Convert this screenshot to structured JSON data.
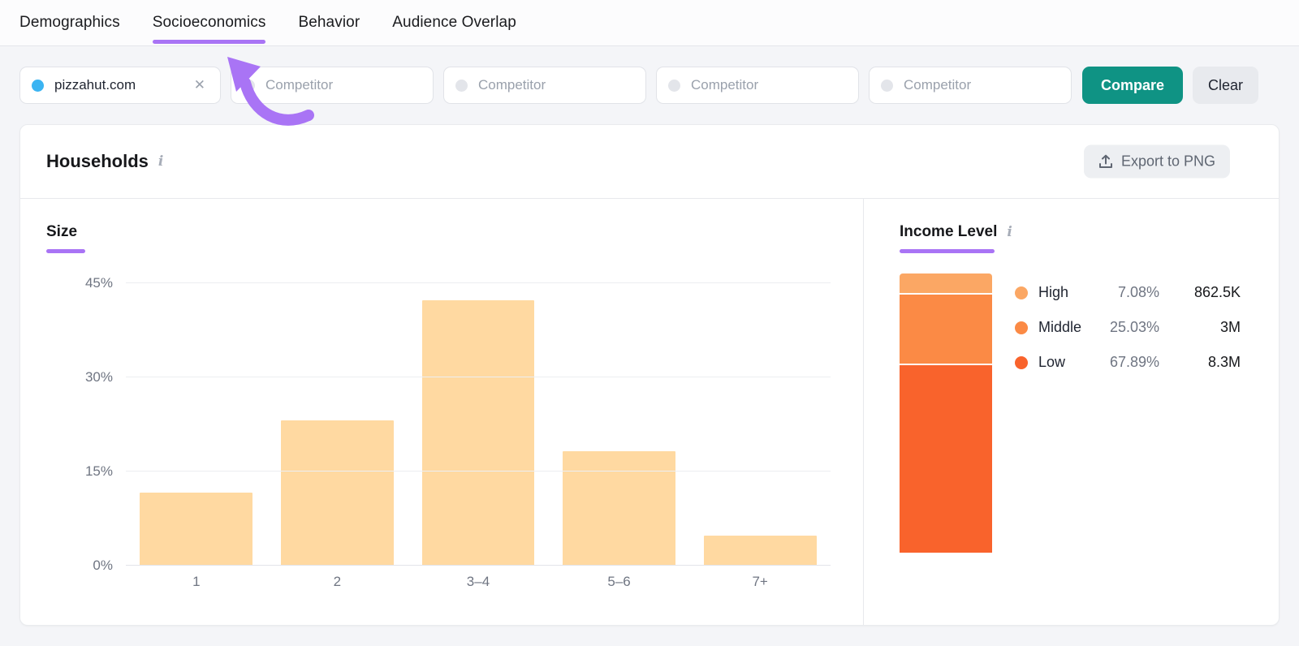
{
  "tabs": [
    {
      "label": "Demographics",
      "active": false
    },
    {
      "label": "Socioeconomics",
      "active": true
    },
    {
      "label": "Behavior",
      "active": false
    },
    {
      "label": "Audience Overlap",
      "active": false
    }
  ],
  "filters": {
    "target_domain": "pizzahut.com",
    "competitor_placeholder": "Competitor",
    "competitor_slots": 4,
    "compare_label": "Compare",
    "clear_label": "Clear"
  },
  "card": {
    "title": "Households",
    "export_label": "Export to PNG"
  },
  "icons": {
    "close": "✕",
    "info": "i"
  },
  "colors": {
    "accent_purple": "#a974f5",
    "compare_green": "#0f9384",
    "target_dot_blue": "#3bb4f2",
    "size_bar": "#ffd9a1"
  },
  "chart_data": [
    {
      "type": "bar",
      "title": "Size",
      "categories": [
        "1",
        "2",
        "3–4",
        "5–6",
        "7+"
      ],
      "values": [
        11.7,
        23.2,
        42.3,
        18.2,
        4.8
      ],
      "value_unit": "percent",
      "yticks": [
        0,
        15,
        30,
        45
      ],
      "ytick_labels": [
        "0%",
        "15%",
        "30%",
        "45%"
      ],
      "ylim": [
        0,
        45
      ],
      "grid": true,
      "legend_position": "none",
      "bar_color": "#ffd9a1"
    },
    {
      "type": "bar",
      "variant": "stacked_single_column",
      "title": "Income Level",
      "series": [
        {
          "name": "High",
          "pct": 7.08,
          "pct_label": "7.08%",
          "count_label": "862.5K",
          "color": "#fba764"
        },
        {
          "name": "Middle",
          "pct": 25.03,
          "pct_label": "25.03%",
          "count_label": "3M",
          "color": "#fb8a45"
        },
        {
          "name": "Low",
          "pct": 67.89,
          "pct_label": "67.89%",
          "count_label": "8.3M",
          "color": "#f9632c"
        }
      ],
      "legend_position": "right"
    }
  ]
}
